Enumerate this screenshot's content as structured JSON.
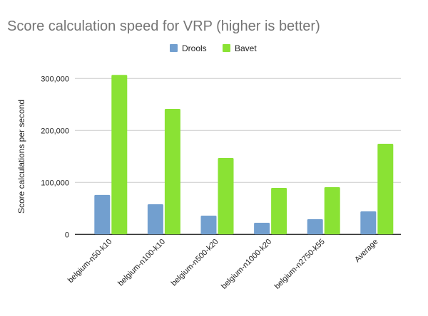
{
  "chart_data": {
    "type": "bar",
    "title": "Score calculation speed for VRP (higher is better)",
    "xlabel": "",
    "ylabel": "Score calculations per second",
    "ylim": [
      0,
      300000
    ],
    "yticks": [
      0,
      100000,
      200000,
      300000
    ],
    "ytick_labels": [
      "0",
      "100,000",
      "200,000",
      "300,000"
    ],
    "grid": true,
    "legend": "top",
    "categories": [
      "belgium-n50-k10",
      "belgium-n100-k10",
      "belgium-n500-k20",
      "belgium-n1000-k20",
      "belgium-n2750-k55",
      "Average"
    ],
    "series": [
      {
        "name": "Drools",
        "color": "#729fcf",
        "values": [
          76000,
          58000,
          36000,
          22400,
          29200,
          44300
        ]
      },
      {
        "name": "Bavet",
        "color": "#8ae234",
        "values": [
          307000,
          241500,
          147000,
          89500,
          90900,
          174400
        ]
      }
    ]
  }
}
